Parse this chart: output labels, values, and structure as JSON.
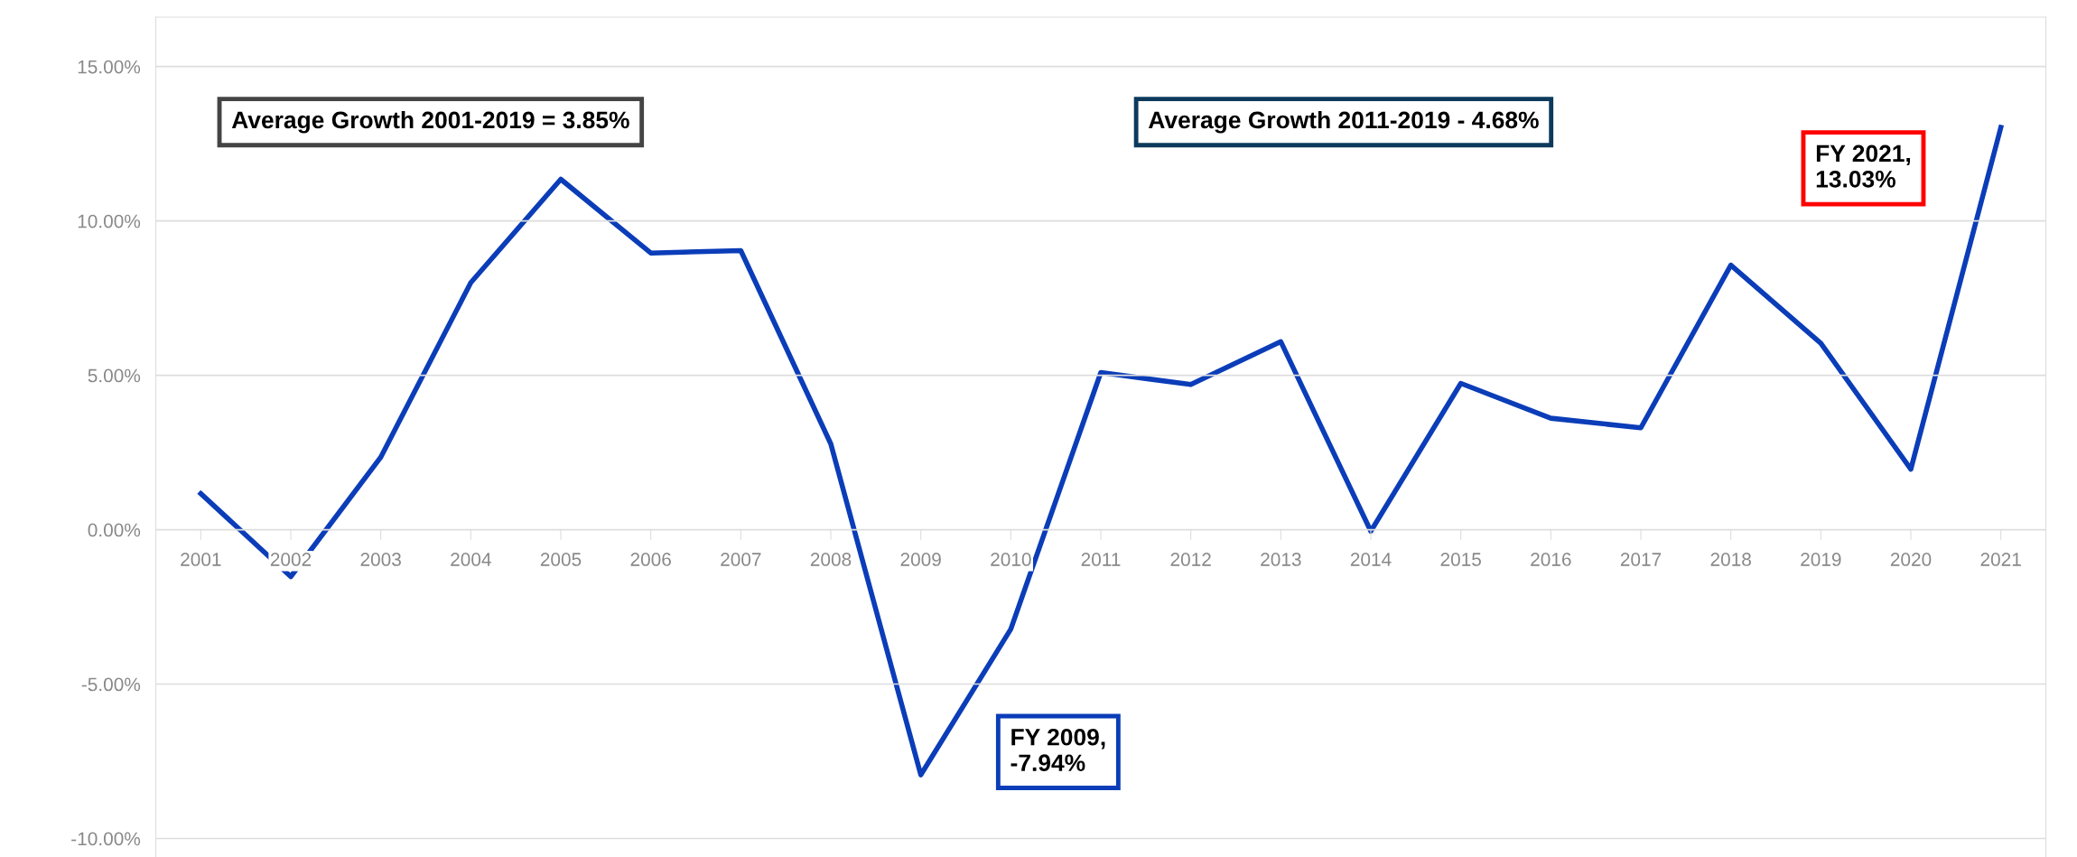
{
  "chart_data": {
    "type": "line",
    "categories": [
      "2001",
      "2002",
      "2003",
      "2004",
      "2005",
      "2006",
      "2007",
      "2008",
      "2009",
      "2010",
      "2011",
      "2012",
      "2013",
      "2014",
      "2015",
      "2016",
      "2017",
      "2018",
      "2019",
      "2020",
      "2021"
    ],
    "series": [
      {
        "color": "#0b3db8",
        "values": [
          1.17,
          -1.52,
          2.35,
          8.0,
          11.35,
          8.96,
          9.04,
          2.78,
          -7.94,
          -3.22,
          5.09,
          4.7,
          6.09,
          -0.05,
          4.74,
          3.61,
          3.3,
          8.57,
          6.04,
          1.96,
          13.03
        ]
      }
    ],
    "ylim": [
      -10.6,
      16.6
    ],
    "yticks": [
      {
        "value": -10,
        "label": "-10.00%"
      },
      {
        "value": -5,
        "label": "-5.00%"
      },
      {
        "value": 0,
        "label": "0.00%"
      },
      {
        "value": 5,
        "label": "5.00%"
      },
      {
        "value": 10,
        "label": "10.00%"
      },
      {
        "value": 15,
        "label": "15.00%"
      }
    ],
    "grid": "y",
    "marker": "none",
    "line_style": "solid",
    "annotations": [
      "Average Growth 2001-2019 = 3.85%",
      "Average Growth 2011-2019 - 4.68%",
      "FY 2009,\n-7.94%",
      "FY 2021,\n13.03%"
    ]
  }
}
